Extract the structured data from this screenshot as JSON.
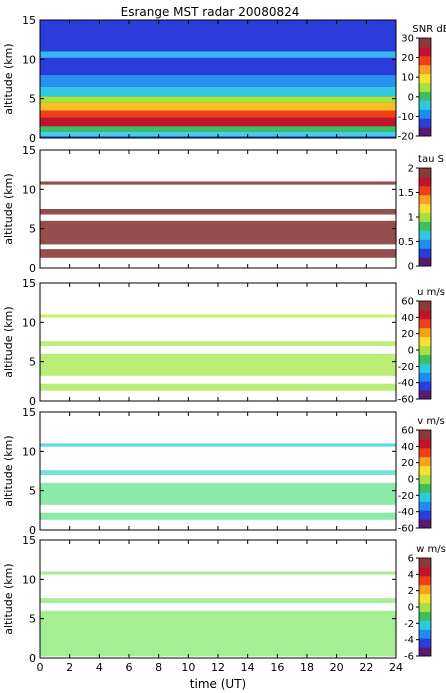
{
  "title": "Esrange MST radar 20080824",
  "xlabel": "time (UT)",
  "chart_data": [
    {
      "type": "heatmap",
      "ylabel": "altitude (km)",
      "xlim": [
        0,
        24
      ],
      "ylim": [
        0,
        15
      ],
      "yticks": [
        0,
        5,
        10,
        15
      ],
      "colorbar_label": "SNR dB",
      "colorbar_range": [
        -20,
        30
      ],
      "colorbar_ticks": [
        30,
        20,
        10,
        0,
        -10,
        -20
      ],
      "background": "#2a3cdc",
      "bands": [
        {
          "y0": 0.2,
          "y1": 0.8,
          "value": 2,
          "color": "#40d0e8"
        },
        {
          "y0": 0.8,
          "y1": 1.5,
          "value": 10,
          "color": "#3fc060"
        },
        {
          "y0": 1.5,
          "y1": 2.6,
          "value": 26,
          "color": "#c0142a"
        },
        {
          "y0": 2.6,
          "y1": 3.5,
          "value": 20,
          "color": "#f0401c"
        },
        {
          "y0": 3.5,
          "y1": 4.5,
          "value": 14,
          "color": "#f8c020"
        },
        {
          "y0": 4.5,
          "y1": 5.3,
          "value": 10,
          "color": "#a8e040"
        },
        {
          "y0": 5.3,
          "y1": 6.5,
          "value": 4,
          "color": "#30c8e0"
        },
        {
          "y0": 6.5,
          "y1": 8.0,
          "value": -2,
          "color": "#2890f0"
        },
        {
          "y0": 10.2,
          "y1": 11.0,
          "value": 0,
          "color": "#38b8f0"
        }
      ]
    },
    {
      "type": "heatmap",
      "ylabel": "altitude (km)",
      "xlim": [
        0,
        24
      ],
      "ylim": [
        0,
        15
      ],
      "yticks": [
        0,
        5,
        10,
        15
      ],
      "colorbar_label": "tau S",
      "colorbar_range": [
        0,
        2
      ],
      "colorbar_ticks": [
        2,
        1.5,
        1,
        0.5,
        0
      ],
      "background": "#ffffff",
      "bands": [
        {
          "y0": 1.3,
          "y1": 2.4,
          "value": 2,
          "color": "#8b3a3a"
        },
        {
          "y0": 3.0,
          "y1": 6.0,
          "value": 2,
          "color": "#8b3a3a"
        },
        {
          "y0": 6.8,
          "y1": 7.5,
          "value": 2,
          "color": "#8b3a3a"
        },
        {
          "y0": 10.6,
          "y1": 11.0,
          "value": 2,
          "color": "#8b3a3a"
        }
      ]
    },
    {
      "type": "heatmap",
      "ylabel": "altitude (km)",
      "xlim": [
        0,
        24
      ],
      "ylim": [
        0,
        15
      ],
      "yticks": [
        0,
        5,
        10,
        15
      ],
      "colorbar_label": "u m/s",
      "colorbar_range": [
        -60,
        60
      ],
      "colorbar_ticks": [
        60,
        40,
        20,
        0,
        -20,
        -40,
        -60
      ],
      "background": "#ffffff",
      "bands": [
        {
          "y0": 1.3,
          "y1": 2.2,
          "value": 12,
          "color": "#b4ec6a"
        },
        {
          "y0": 3.2,
          "y1": 6.0,
          "value": 12,
          "color": "#b4ec6a"
        },
        {
          "y0": 7.0,
          "y1": 7.6,
          "value": 12,
          "color": "#b4ec6a"
        },
        {
          "y0": 10.6,
          "y1": 11.0,
          "value": 14,
          "color": "#c8f060"
        }
      ]
    },
    {
      "type": "heatmap",
      "ylabel": "altitude (km)",
      "xlim": [
        0,
        24
      ],
      "ylim": [
        0,
        15
      ],
      "yticks": [
        0,
        5,
        10,
        15
      ],
      "colorbar_label": "v m/s",
      "colorbar_range": [
        -60,
        60
      ],
      "colorbar_ticks": [
        60,
        40,
        20,
        0,
        -20,
        -40,
        -60
      ],
      "background": "#ffffff",
      "bands": [
        {
          "y0": 1.3,
          "y1": 2.2,
          "value": 0,
          "color": "#80e8a0"
        },
        {
          "y0": 3.2,
          "y1": 6.0,
          "value": 0,
          "color": "#80e8a0"
        },
        {
          "y0": 7.0,
          "y1": 7.6,
          "value": -4,
          "color": "#60e0d0"
        },
        {
          "y0": 10.6,
          "y1": 11.0,
          "value": -8,
          "color": "#40d8e8"
        }
      ]
    },
    {
      "type": "heatmap",
      "ylabel": "altitude (km)",
      "xlim": [
        0,
        24
      ],
      "ylim": [
        0,
        15
      ],
      "yticks": [
        0,
        5,
        10,
        15
      ],
      "xticks": [
        0,
        2,
        4,
        6,
        8,
        10,
        12,
        14,
        16,
        18,
        20,
        22,
        24
      ],
      "colorbar_label": "w m/s",
      "colorbar_range": [
        -6,
        6
      ],
      "colorbar_ticks": [
        6,
        4,
        2,
        0,
        -2,
        -4,
        -6
      ],
      "background": "#ffffff",
      "bands": [
        {
          "y0": 0.2,
          "y1": 6.0,
          "value": 0,
          "color": "#9aec88"
        },
        {
          "y0": 7.0,
          "y1": 7.6,
          "value": 0,
          "color": "#9aec88"
        },
        {
          "y0": 10.6,
          "y1": 11.0,
          "value": 0,
          "color": "#9aec88"
        }
      ]
    }
  ],
  "colormap": [
    "#5a1a6e",
    "#2a3cdc",
    "#1e8cf0",
    "#30c8e0",
    "#3fc060",
    "#a8e040",
    "#f8e030",
    "#f8a020",
    "#f04018",
    "#c0142a",
    "#8b3a3a"
  ]
}
